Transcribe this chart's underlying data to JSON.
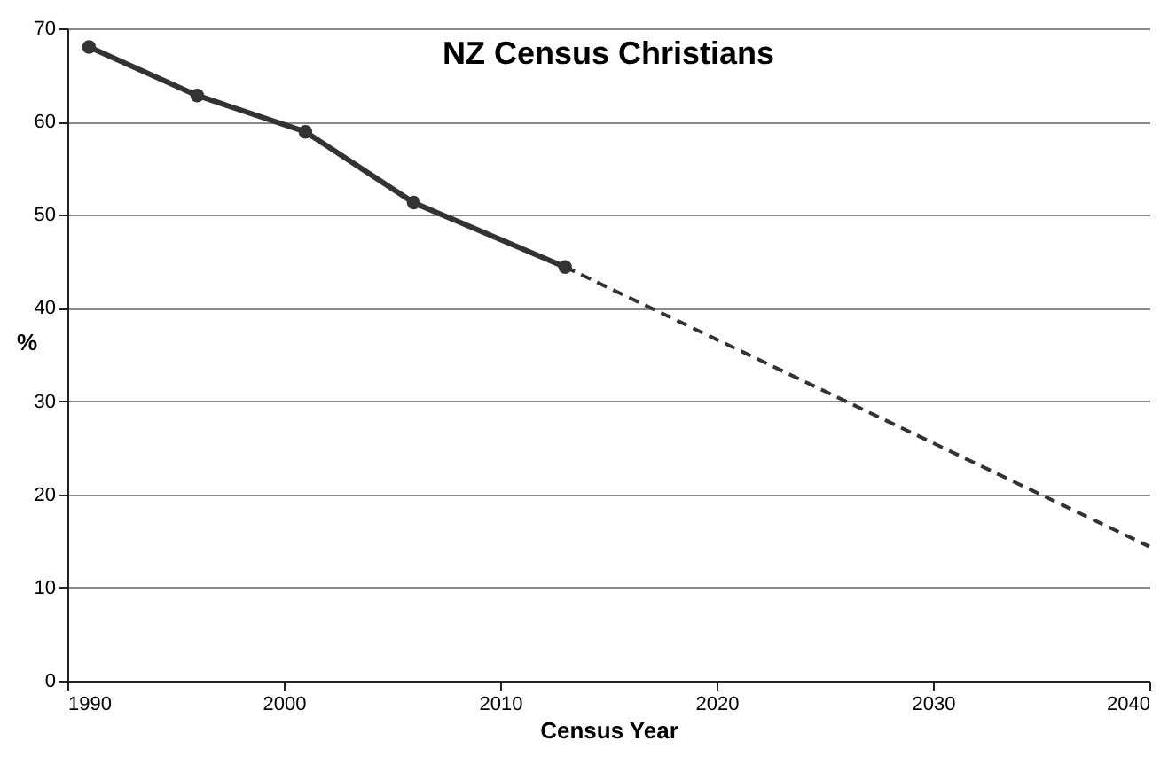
{
  "chart_data": {
    "type": "line",
    "title": "NZ Census Christians",
    "xlabel": "Census Year",
    "ylabel": "%",
    "xlim": [
      1990,
      2040
    ],
    "xticks": [
      1990,
      2000,
      2010,
      2020,
      2030,
      2040
    ],
    "ylim": [
      0,
      70
    ],
    "yticks": [
      0,
      10,
      20,
      30,
      40,
      50,
      60,
      70
    ],
    "grid": "y",
    "series": [
      {
        "x": [
          1991,
          1996,
          2001,
          2006,
          2013
        ],
        "values": [
          68.0,
          62.8,
          58.9,
          51.3,
          44.4
        ],
        "color": "#333333",
        "marker": "circle",
        "line_style": "solid"
      },
      {
        "type": "line",
        "x": [
          2013,
          2040
        ],
        "values": [
          44.4,
          14.4
        ],
        "color": "#333333",
        "marker": "none",
        "line_style": "dashed"
      }
    ]
  }
}
